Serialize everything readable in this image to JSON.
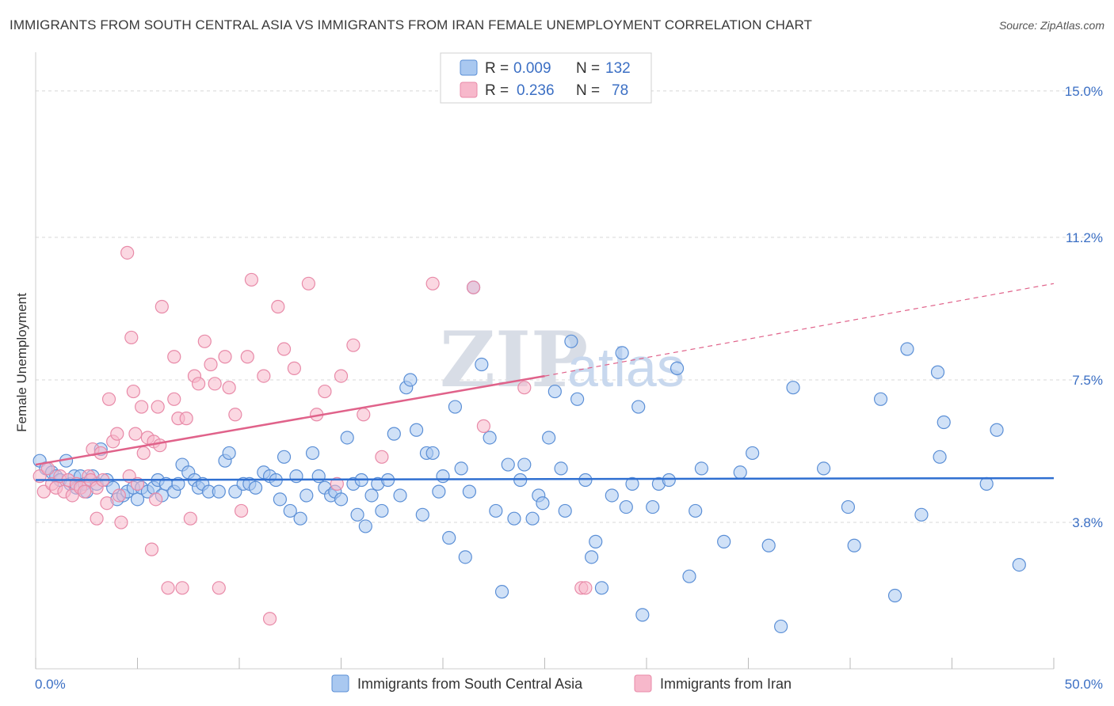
{
  "title": "IMMIGRANTS FROM SOUTH CENTRAL ASIA VS IMMIGRANTS FROM IRAN FEMALE UNEMPLOYMENT CORRELATION CHART",
  "source": "Source: ZipAtlas.com",
  "watermark": {
    "zip": "ZIP",
    "atlas": "atlas"
  },
  "colors": {
    "blue_fill": "#a9c8f0",
    "blue_stroke": "#5b8fd6",
    "blue_line": "#2f6fd1",
    "pink_fill": "#f7b8cb",
    "pink_stroke": "#e88aa8",
    "pink_line": "#e0628a",
    "grid": "#d8d8d8",
    "label": "#3b6fc4"
  },
  "legend": {
    "rows": [
      {
        "r_label": "R =",
        "r_value": "0.009",
        "n_label": "N =",
        "n_value": "132"
      },
      {
        "r_label": "R =",
        "r_value": "0.236",
        "n_label": "N =",
        "n_value": "78"
      }
    ]
  },
  "chart_data": {
    "type": "scatter",
    "title": "IMMIGRANTS FROM SOUTH CENTRAL ASIA VS IMMIGRANTS FROM IRAN FEMALE UNEMPLOYMENT CORRELATION CHART",
    "xlabel": "",
    "ylabel": "Female Unemployment",
    "xlim": [
      0,
      50
    ],
    "ylim": [
      0,
      15.8
    ],
    "x_tick_labels": [
      "0.0%",
      "50.0%"
    ],
    "y_ticks": [
      3.8,
      7.5,
      11.2,
      15.0
    ],
    "y_tick_labels": [
      "3.8%",
      "7.5%",
      "11.2%",
      "15.0%"
    ],
    "grid": "horizontal dashed",
    "legend_position": "top-center",
    "series": [
      {
        "name": "Immigrants from South Central Asia",
        "R": 0.009,
        "N": 132,
        "trend": {
          "x": [
            0,
            50
          ],
          "y": [
            4.9,
            4.95
          ],
          "style": "solid"
        },
        "points": [
          [
            0.2,
            5.4
          ],
          [
            0.5,
            5.2
          ],
          [
            0.8,
            5.1
          ],
          [
            1.0,
            5.0
          ],
          [
            1.2,
            4.9
          ],
          [
            1.5,
            5.4
          ],
          [
            1.7,
            4.8
          ],
          [
            1.9,
            5.0
          ],
          [
            2.0,
            4.7
          ],
          [
            2.2,
            5.0
          ],
          [
            2.4,
            4.8
          ],
          [
            2.5,
            4.6
          ],
          [
            2.8,
            5.0
          ],
          [
            3.0,
            4.8
          ],
          [
            3.2,
            5.7
          ],
          [
            3.5,
            4.9
          ],
          [
            3.8,
            4.7
          ],
          [
            4.0,
            4.4
          ],
          [
            4.3,
            4.5
          ],
          [
            4.5,
            4.6
          ],
          [
            4.8,
            4.7
          ],
          [
            5.0,
            4.4
          ],
          [
            5.2,
            4.7
          ],
          [
            5.5,
            4.6
          ],
          [
            5.8,
            4.7
          ],
          [
            6.0,
            4.9
          ],
          [
            6.2,
            4.5
          ],
          [
            6.4,
            4.8
          ],
          [
            6.8,
            4.6
          ],
          [
            7.0,
            4.8
          ],
          [
            7.2,
            5.3
          ],
          [
            7.5,
            5.1
          ],
          [
            7.8,
            4.9
          ],
          [
            8.0,
            4.7
          ],
          [
            8.2,
            4.8
          ],
          [
            8.5,
            4.6
          ],
          [
            9.0,
            4.6
          ],
          [
            9.3,
            5.4
          ],
          [
            9.5,
            5.6
          ],
          [
            9.8,
            4.6
          ],
          [
            10.2,
            4.8
          ],
          [
            10.5,
            4.8
          ],
          [
            10.8,
            4.7
          ],
          [
            11.2,
            5.1
          ],
          [
            11.5,
            5.0
          ],
          [
            11.8,
            4.9
          ],
          [
            12.0,
            4.4
          ],
          [
            12.2,
            5.5
          ],
          [
            12.5,
            4.1
          ],
          [
            12.8,
            5.0
          ],
          [
            13.0,
            3.9
          ],
          [
            13.3,
            4.5
          ],
          [
            13.6,
            5.6
          ],
          [
            13.9,
            5.0
          ],
          [
            14.2,
            4.7
          ],
          [
            14.5,
            4.5
          ],
          [
            14.7,
            4.6
          ],
          [
            15.0,
            4.4
          ],
          [
            15.3,
            6.0
          ],
          [
            15.6,
            4.8
          ],
          [
            15.8,
            4.0
          ],
          [
            16.0,
            4.9
          ],
          [
            16.2,
            3.7
          ],
          [
            16.5,
            4.5
          ],
          [
            16.8,
            4.8
          ],
          [
            17.0,
            4.1
          ],
          [
            17.3,
            4.9
          ],
          [
            17.6,
            6.1
          ],
          [
            17.9,
            4.5
          ],
          [
            18.2,
            7.3
          ],
          [
            18.4,
            7.5
          ],
          [
            18.7,
            6.2
          ],
          [
            19.0,
            4.0
          ],
          [
            19.2,
            5.6
          ],
          [
            19.5,
            5.6
          ],
          [
            19.8,
            4.6
          ],
          [
            20.0,
            5.0
          ],
          [
            20.3,
            3.4
          ],
          [
            20.6,
            6.8
          ],
          [
            20.9,
            5.2
          ],
          [
            21.1,
            2.9
          ],
          [
            21.3,
            4.6
          ],
          [
            21.5,
            9.9
          ],
          [
            21.9,
            7.9
          ],
          [
            22.3,
            6.0
          ],
          [
            22.6,
            4.1
          ],
          [
            22.9,
            2.0
          ],
          [
            23.2,
            5.3
          ],
          [
            23.5,
            3.9
          ],
          [
            23.8,
            4.9
          ],
          [
            24.0,
            5.3
          ],
          [
            24.4,
            3.9
          ],
          [
            24.7,
            4.5
          ],
          [
            24.9,
            4.3
          ],
          [
            25.2,
            6.0
          ],
          [
            25.5,
            7.2
          ],
          [
            25.8,
            5.2
          ],
          [
            26.0,
            4.1
          ],
          [
            26.3,
            8.5
          ],
          [
            26.6,
            7.0
          ],
          [
            27.0,
            4.9
          ],
          [
            27.3,
            2.9
          ],
          [
            27.5,
            3.3
          ],
          [
            27.8,
            2.1
          ],
          [
            28.3,
            4.5
          ],
          [
            28.8,
            8.2
          ],
          [
            29.0,
            4.2
          ],
          [
            29.3,
            4.8
          ],
          [
            29.6,
            6.8
          ],
          [
            29.8,
            1.4
          ],
          [
            30.3,
            4.2
          ],
          [
            30.6,
            4.8
          ],
          [
            31.1,
            4.9
          ],
          [
            31.5,
            7.8
          ],
          [
            32.1,
            2.4
          ],
          [
            32.4,
            4.1
          ],
          [
            32.7,
            5.2
          ],
          [
            33.8,
            3.3
          ],
          [
            34.6,
            5.1
          ],
          [
            35.2,
            5.6
          ],
          [
            36.0,
            3.2
          ],
          [
            36.6,
            1.1
          ],
          [
            37.2,
            7.3
          ],
          [
            38.7,
            5.2
          ],
          [
            39.9,
            4.2
          ],
          [
            40.2,
            3.2
          ],
          [
            41.5,
            7.0
          ],
          [
            42.2,
            1.9
          ],
          [
            42.8,
            8.3
          ],
          [
            43.5,
            4.0
          ],
          [
            44.3,
            7.7
          ],
          [
            44.4,
            5.5
          ],
          [
            44.6,
            6.4
          ],
          [
            46.7,
            4.8
          ],
          [
            47.2,
            6.2
          ],
          [
            48.3,
            2.7
          ]
        ]
      },
      {
        "name": "Immigrants from Iran",
        "R": 0.236,
        "N": 78,
        "trend": {
          "x": [
            0,
            25
          ],
          "y": [
            5.3,
            7.6
          ],
          "style": "solid",
          "extension": {
            "x": [
              25,
              50
            ],
            "y": [
              7.6,
              10.0
            ],
            "style": "dashed"
          }
        },
        "points": [
          [
            0.2,
            5.0
          ],
          [
            0.4,
            4.6
          ],
          [
            0.6,
            5.2
          ],
          [
            0.8,
            4.8
          ],
          [
            1.0,
            4.7
          ],
          [
            1.2,
            5.0
          ],
          [
            1.4,
            4.6
          ],
          [
            1.6,
            4.9
          ],
          [
            1.8,
            4.5
          ],
          [
            2.0,
            4.8
          ],
          [
            2.2,
            4.7
          ],
          [
            2.4,
            4.6
          ],
          [
            2.6,
            5.0
          ],
          [
            2.7,
            4.9
          ],
          [
            2.8,
            5.7
          ],
          [
            3.0,
            4.7
          ],
          [
            3.0,
            3.9
          ],
          [
            3.2,
            5.6
          ],
          [
            3.3,
            4.9
          ],
          [
            3.5,
            4.3
          ],
          [
            3.6,
            7.0
          ],
          [
            3.8,
            5.9
          ],
          [
            4.0,
            6.1
          ],
          [
            4.1,
            4.5
          ],
          [
            4.2,
            3.8
          ],
          [
            4.5,
            10.8
          ],
          [
            4.6,
            5.0
          ],
          [
            4.7,
            8.6
          ],
          [
            4.8,
            7.2
          ],
          [
            4.9,
            6.1
          ],
          [
            5.0,
            4.8
          ],
          [
            5.2,
            6.8
          ],
          [
            5.3,
            5.6
          ],
          [
            5.5,
            6.0
          ],
          [
            5.7,
            3.1
          ],
          [
            5.8,
            5.9
          ],
          [
            5.9,
            4.4
          ],
          [
            6.0,
            6.8
          ],
          [
            6.1,
            5.8
          ],
          [
            6.2,
            9.4
          ],
          [
            6.5,
            2.1
          ],
          [
            6.8,
            8.1
          ],
          [
            6.8,
            7.0
          ],
          [
            7.0,
            6.5
          ],
          [
            7.2,
            2.1
          ],
          [
            7.4,
            6.5
          ],
          [
            7.6,
            3.9
          ],
          [
            7.8,
            7.6
          ],
          [
            8.0,
            7.4
          ],
          [
            8.3,
            8.5
          ],
          [
            8.6,
            7.9
          ],
          [
            8.8,
            7.4
          ],
          [
            9.0,
            2.1
          ],
          [
            9.3,
            8.1
          ],
          [
            9.5,
            7.3
          ],
          [
            9.8,
            6.6
          ],
          [
            10.1,
            4.1
          ],
          [
            10.4,
            8.1
          ],
          [
            10.6,
            10.1
          ],
          [
            11.2,
            7.6
          ],
          [
            11.5,
            1.3
          ],
          [
            11.9,
            9.4
          ],
          [
            12.2,
            8.3
          ],
          [
            12.7,
            7.8
          ],
          [
            13.4,
            10.0
          ],
          [
            13.8,
            6.6
          ],
          [
            14.2,
            7.2
          ],
          [
            15.0,
            7.6
          ],
          [
            15.6,
            8.4
          ],
          [
            16.1,
            6.6
          ],
          [
            17.0,
            5.5
          ],
          [
            19.5,
            10.0
          ],
          [
            21.5,
            9.9
          ],
          [
            22.0,
            6.3
          ],
          [
            24.0,
            7.3
          ],
          [
            26.8,
            2.1
          ],
          [
            27.0,
            2.1
          ],
          [
            14.8,
            4.8
          ]
        ]
      }
    ]
  },
  "bottom_legend": [
    {
      "label": "Immigrants from South Central Asia"
    },
    {
      "label": "Immigrants from Iran"
    }
  ]
}
